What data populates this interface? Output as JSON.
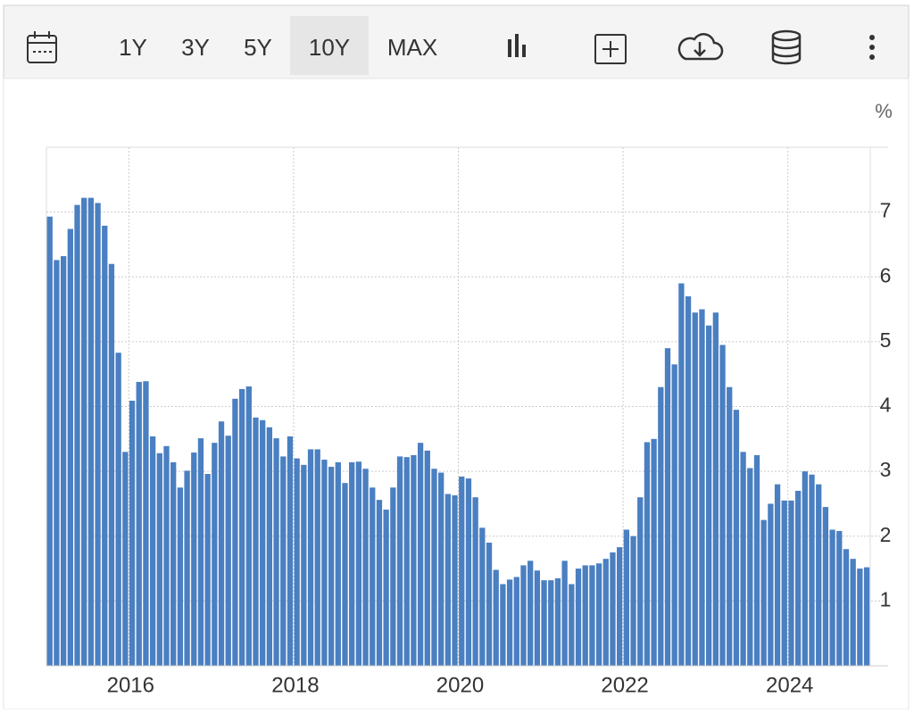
{
  "toolbar": {
    "buttons": [
      "1Y",
      "3Y",
      "5Y",
      "10Y",
      "MAX"
    ],
    "active": 3
  },
  "chart_data": {
    "type": "bar",
    "unit_label": "%",
    "color": "#4a7fc1",
    "grid": true,
    "ylim": [
      0,
      8
    ],
    "yticks": [
      1,
      2,
      3,
      4,
      5,
      6,
      7
    ],
    "categories": [
      null,
      null,
      null,
      null,
      null,
      null,
      null,
      null,
      null,
      null,
      null,
      null,
      "2016",
      null,
      null,
      null,
      null,
      null,
      null,
      null,
      null,
      null,
      null,
      null,
      null,
      null,
      null,
      null,
      null,
      null,
      null,
      null,
      null,
      null,
      null,
      null,
      "2018",
      null,
      null,
      null,
      null,
      null,
      null,
      null,
      null,
      null,
      null,
      null,
      null,
      null,
      null,
      null,
      null,
      null,
      null,
      null,
      null,
      null,
      null,
      null,
      "2020",
      null,
      null,
      null,
      null,
      null,
      null,
      null,
      null,
      null,
      null,
      null,
      null,
      null,
      null,
      null,
      null,
      null,
      null,
      null,
      null,
      null,
      null,
      null,
      "2022",
      null,
      null,
      null,
      null,
      null,
      null,
      null,
      null,
      null,
      null,
      null,
      null,
      null,
      null,
      null,
      null,
      null,
      null,
      null,
      null,
      null,
      null,
      null,
      "2024",
      null,
      null,
      null,
      null,
      null,
      null,
      null,
      null,
      null,
      null,
      null
    ],
    "values": [
      6.93,
      6.26,
      6.32,
      6.74,
      7.11,
      7.22,
      7.22,
      7.14,
      6.79,
      6.2,
      4.83,
      3.3,
      4.09,
      4.38,
      4.39,
      3.54,
      3.28,
      3.39,
      3.14,
      2.75,
      3.01,
      3.29,
      3.51,
      2.96,
      3.44,
      3.77,
      3.55,
      4.12,
      4.27,
      4.31,
      3.83,
      3.79,
      3.68,
      3.51,
      3.23,
      3.54,
      3.2,
      3.1,
      3.34,
      3.34,
      3.18,
      3.07,
      3.14,
      2.82,
      3.14,
      3.15,
      3.04,
      2.75,
      2.56,
      2.41,
      2.75,
      3.23,
      3.22,
      3.25,
      3.44,
      3.32,
      3.04,
      2.98,
      2.65,
      2.63,
      2.92,
      2.89,
      2.6,
      2.13,
      1.9,
      1.48,
      1.26,
      1.33,
      1.37,
      1.55,
      1.62,
      1.47,
      1.32,
      1.32,
      1.35,
      1.62,
      1.26,
      1.5,
      1.55,
      1.55,
      1.58,
      1.65,
      1.75,
      1.83,
      2.1,
      2.0,
      2.6,
      3.45,
      3.5,
      4.3,
      4.9,
      4.65,
      5.9,
      5.7,
      5.45,
      5.5,
      5.25,
      5.45,
      4.95,
      4.3,
      3.95,
      3.3,
      3.05,
      3.25,
      2.25,
      2.5,
      2.8,
      2.55,
      2.55,
      2.7,
      3.0,
      2.95,
      2.8,
      2.45,
      2.1,
      2.08,
      1.8,
      1.65,
      1.5,
      1.52
    ]
  }
}
